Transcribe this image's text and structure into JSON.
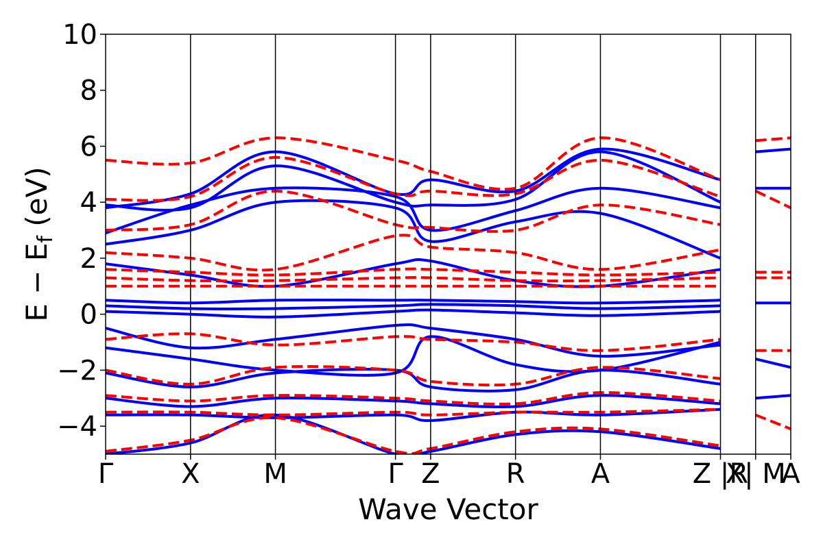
{
  "chart_data": {
    "type": "line",
    "title": "",
    "xlabel": "Wave Vector",
    "ylabel": "E − E",
    "ylabel_subscript": "f",
    "ylabel_unit": " (eV)",
    "ylim": [
      -5,
      10
    ],
    "yticks": [
      -4,
      -2,
      0,
      2,
      4,
      6,
      8,
      10
    ],
    "ytick_labels": [
      "−4",
      "−2",
      "0",
      "2",
      "4",
      "6",
      "8",
      "10"
    ],
    "kpath": [
      {
        "label": "Γ",
        "x": 0.0
      },
      {
        "label": "X",
        "x": 0.5
      },
      {
        "label": "M",
        "x": 1.0
      },
      {
        "label": "Γ",
        "x": 1.707
      },
      {
        "label": "Z",
        "x": 1.914
      },
      {
        "label": "R",
        "x": 2.414
      },
      {
        "label": "A",
        "x": 2.914
      },
      {
        "label": "Z |R",
        "x": 3.621
      },
      {
        "label": "X| M",
        "x": 3.828
      },
      {
        "label": "A",
        "x": 4.035
      }
    ],
    "grid": false,
    "series_styles": [
      {
        "color": "#0000ff",
        "style": "solid"
      },
      {
        "color": "#ff0000",
        "style": "dashed"
      }
    ],
    "series": [
      {
        "style_index": 0,
        "bands": [
          {
            "x": [
              0,
              0.5,
              1.0,
              1.707,
              1.914,
              2.414,
              2.914,
              3.621
            ],
            "y": [
              3.8,
              4.3,
              5.8,
              4.3,
              4.8,
              4.4,
              5.9,
              4.8
            ]
          },
          {
            "x": [
              0,
              0.5,
              1.0,
              1.707,
              1.914,
              2.414,
              2.914,
              3.621
            ],
            "y": [
              3.9,
              3.8,
              5.3,
              4.0,
              3.9,
              4.1,
              5.8,
              4.0
            ]
          },
          {
            "x": [
              0,
              0.5,
              1.0,
              1.707,
              1.914,
              2.414,
              2.914,
              3.621
            ],
            "y": [
              2.9,
              3.9,
              4.5,
              4.2,
              3.0,
              3.7,
              4.5,
              3.8
            ]
          },
          {
            "x": [
              0,
              0.5,
              1.0,
              1.707,
              1.914,
              2.414,
              2.914,
              3.621
            ],
            "y": [
              2.5,
              3.0,
              4.0,
              3.8,
              2.6,
              3.3,
              3.6,
              2.0
            ]
          },
          {
            "x": [
              0,
              0.5,
              1.0,
              1.707,
              1.914,
              2.414,
              2.914,
              3.621
            ],
            "y": [
              1.8,
              1.4,
              1.0,
              1.8,
              1.9,
              1.2,
              1.0,
              1.6
            ]
          },
          {
            "x": [
              0,
              0.5,
              1.0,
              1.707,
              1.914,
              2.414,
              2.914,
              3.621
            ],
            "y": [
              0.5,
              0.4,
              0.5,
              0.5,
              0.5,
              0.45,
              0.4,
              0.5
            ]
          },
          {
            "x": [
              0,
              0.5,
              1.0,
              1.707,
              1.914,
              2.414,
              2.914,
              3.621
            ],
            "y": [
              0.3,
              0.2,
              0.2,
              0.3,
              0.35,
              0.3,
              0.2,
              0.3
            ]
          },
          {
            "x": [
              0,
              0.5,
              1.0,
              1.707,
              1.914,
              2.414,
              2.914,
              3.621
            ],
            "y": [
              0.1,
              0.0,
              -0.1,
              0.1,
              0.15,
              0.05,
              -0.05,
              0.1
            ]
          },
          {
            "x": [
              0,
              0.5,
              1.0,
              1.707,
              1.914,
              2.414,
              2.914,
              3.621
            ],
            "y": [
              -0.5,
              -1.2,
              -0.9,
              -0.4,
              -0.5,
              -0.9,
              -1.5,
              -1.1
            ]
          },
          {
            "x": [
              0,
              0.5,
              1.0,
              1.707,
              1.914,
              2.414,
              2.914,
              3.621
            ],
            "y": [
              -1.2,
              -1.6,
              -2.0,
              -2.1,
              -0.8,
              -1.8,
              -2.0,
              -1.0
            ]
          },
          {
            "x": [
              0,
              0.5,
              1.0,
              1.707,
              1.914,
              2.414,
              2.914,
              3.621
            ],
            "y": [
              -2.1,
              -2.6,
              -2.1,
              -2.0,
              -2.6,
              -2.7,
              -2.0,
              -2.5
            ]
          },
          {
            "x": [
              0,
              0.5,
              1.0,
              1.707,
              1.914,
              2.414,
              2.914,
              3.621
            ],
            "y": [
              -3.0,
              -3.3,
              -3.0,
              -3.1,
              -3.2,
              -3.3,
              -2.9,
              -3.2
            ]
          },
          {
            "x": [
              0,
              0.5,
              1.0,
              1.707,
              1.914,
              2.414,
              2.914,
              3.621
            ],
            "y": [
              -3.6,
              -3.6,
              -3.7,
              -3.6,
              -3.8,
              -3.5,
              -3.6,
              -3.4
            ]
          },
          {
            "x": [
              0,
              0.5,
              1.0,
              1.707,
              1.914,
              2.414,
              2.914,
              3.621
            ],
            "y": [
              -5.0,
              -4.6,
              -3.6,
              -5.0,
              -4.9,
              -4.3,
              -4.2,
              -4.8
            ]
          },
          {
            "x": [
              3.828,
              4.035
            ],
            "y": [
              5.8,
              5.9
            ]
          },
          {
            "x": [
              3.828,
              4.035
            ],
            "y": [
              4.5,
              4.5
            ]
          },
          {
            "x": [
              3.828,
              4.035
            ],
            "y": [
              0.4,
              0.4
            ]
          },
          {
            "x": [
              3.828,
              4.035
            ],
            "y": [
              -1.6,
              -1.9
            ]
          },
          {
            "x": [
              3.828,
              4.035
            ],
            "y": [
              -3.0,
              -2.9
            ]
          }
        ]
      },
      {
        "style_index": 1,
        "bands": [
          {
            "x": [
              0,
              0.5,
              1.0,
              1.707,
              1.914,
              2.414,
              2.914,
              3.621
            ],
            "y": [
              5.5,
              5.4,
              6.3,
              5.5,
              5.1,
              4.5,
              6.3,
              4.8
            ]
          },
          {
            "x": [
              0,
              0.5,
              1.0,
              1.707,
              1.914,
              2.414,
              2.914,
              3.621
            ],
            "y": [
              4.1,
              4.2,
              5.6,
              4.3,
              4.4,
              4.3,
              5.5,
              4.2
            ]
          },
          {
            "x": [
              0,
              0.5,
              1.0,
              1.707,
              1.914,
              2.414,
              2.914,
              3.621
            ],
            "y": [
              3.0,
              3.2,
              4.4,
              3.2,
              3.1,
              3.0,
              3.9,
              3.2
            ]
          },
          {
            "x": [
              0,
              0.5,
              1.0,
              1.707,
              1.914,
              2.414,
              2.914,
              3.621
            ],
            "y": [
              2.2,
              2.0,
              1.6,
              2.8,
              2.4,
              2.2,
              1.6,
              2.3
            ]
          },
          {
            "x": [
              0,
              0.5,
              1.0,
              1.707,
              1.914,
              2.414,
              2.914,
              3.621
            ],
            "y": [
              1.6,
              1.5,
              1.4,
              1.6,
              1.6,
              1.5,
              1.4,
              1.5
            ]
          },
          {
            "x": [
              0,
              0.5,
              1.0,
              1.707,
              1.914,
              2.414,
              2.914,
              3.621
            ],
            "y": [
              1.3,
              1.2,
              1.2,
              1.3,
              1.3,
              1.2,
              1.2,
              1.3
            ]
          },
          {
            "x": [
              0,
              0.5,
              1.0,
              1.707,
              1.914,
              2.414,
              2.914,
              3.621
            ],
            "y": [
              1.0,
              1.0,
              1.0,
              1.0,
              1.0,
              1.0,
              1.0,
              1.0
            ]
          },
          {
            "x": [
              0,
              0.5,
              1.0,
              1.707,
              1.914,
              2.414,
              2.914,
              3.621
            ],
            "y": [
              -0.9,
              -0.7,
              -1.1,
              -0.8,
              -0.9,
              -1.0,
              -1.3,
              -0.9
            ]
          },
          {
            "x": [
              0,
              0.5,
              1.0,
              1.707,
              1.914,
              2.414,
              2.914,
              3.621
            ],
            "y": [
              -2.0,
              -2.5,
              -1.9,
              -2.0,
              -2.4,
              -2.5,
              -1.9,
              -2.3
            ]
          },
          {
            "x": [
              0,
              0.5,
              1.0,
              1.707,
              1.914,
              2.414,
              2.914,
              3.621
            ],
            "y": [
              -2.9,
              -3.1,
              -2.9,
              -3.0,
              -3.1,
              -3.2,
              -2.8,
              -3.1
            ]
          },
          {
            "x": [
              0,
              0.5,
              1.0,
              1.707,
              1.914,
              2.414,
              2.914,
              3.621
            ],
            "y": [
              -3.5,
              -3.5,
              -3.6,
              -3.5,
              -3.6,
              -3.5,
              -3.5,
              -3.4
            ]
          },
          {
            "x": [
              0,
              0.5,
              1.0,
              1.707,
              1.914,
              2.414,
              2.914,
              3.621
            ],
            "y": [
              -4.9,
              -4.5,
              -3.7,
              -4.9,
              -4.8,
              -4.2,
              -4.1,
              -4.7
            ]
          },
          {
            "x": [
              3.828,
              4.035
            ],
            "y": [
              6.2,
              6.3
            ]
          },
          {
            "x": [
              3.828,
              4.035
            ],
            "y": [
              4.4,
              3.8
            ]
          },
          {
            "x": [
              3.828,
              4.035
            ],
            "y": [
              1.5,
              1.5
            ]
          },
          {
            "x": [
              3.828,
              4.035
            ],
            "y": [
              1.3,
              1.3
            ]
          },
          {
            "x": [
              3.828,
              4.035
            ],
            "y": [
              -1.3,
              -1.3
            ]
          },
          {
            "x": [
              3.828,
              4.035
            ],
            "y": [
              -3.6,
              -4.1
            ]
          }
        ]
      }
    ]
  }
}
